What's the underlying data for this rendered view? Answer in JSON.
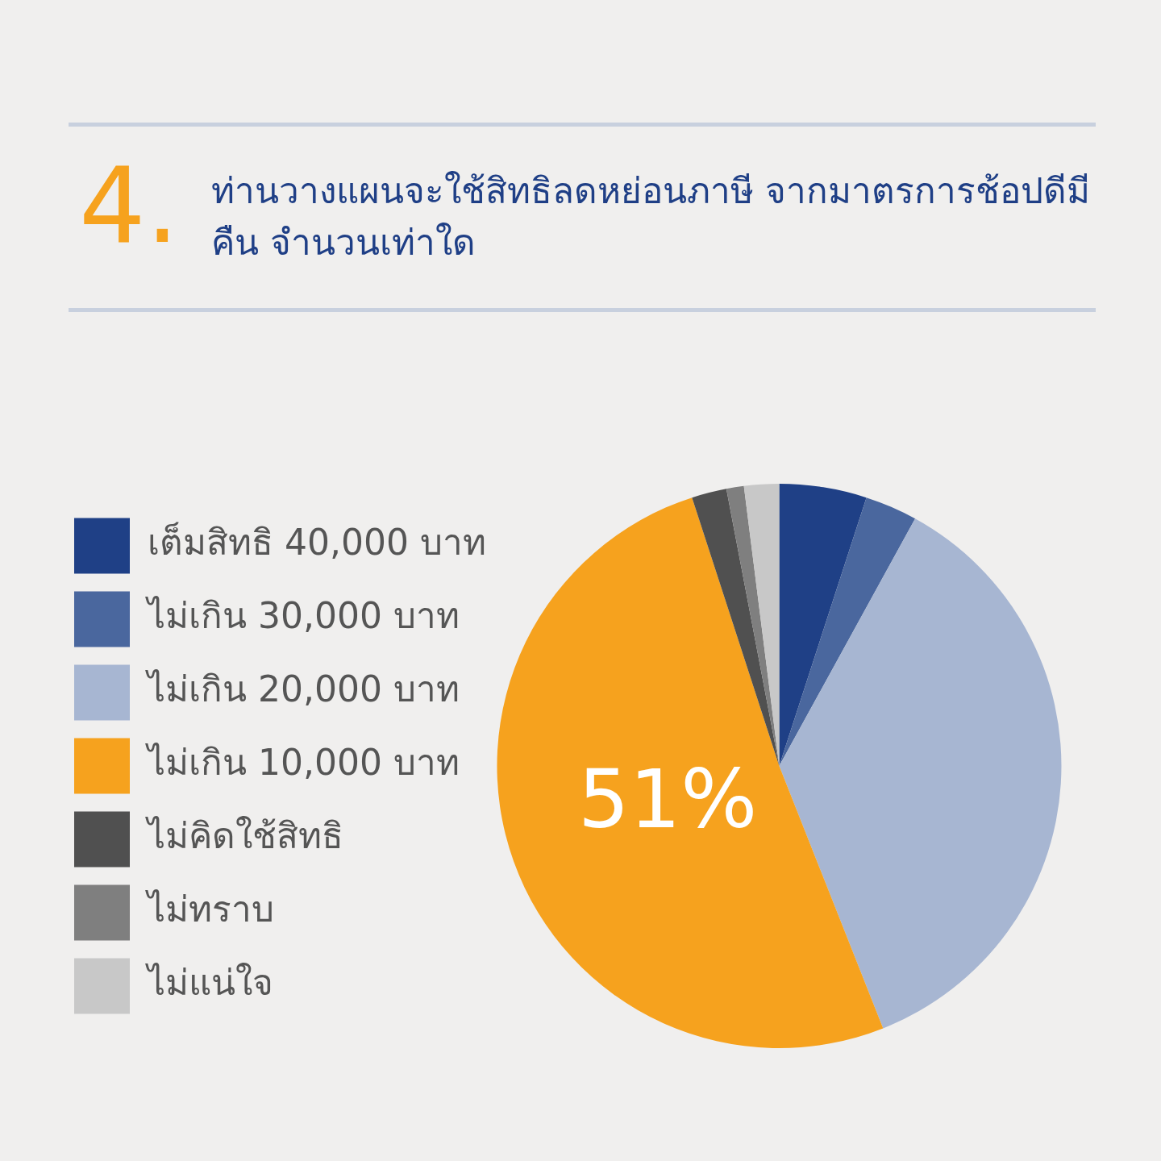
{
  "chart_data": {
    "type": "pie",
    "title": "ท่านวางแผนจะใช้สิทธิลดหย่อนภาษี จากมาตรการช้อปดีมีคืน จำนวนเท่าใด",
    "annotations": [
      "4."
    ],
    "categories": [
      "เต็มสิทธิ 40,000 บาท",
      "ไม่เกิน 30,000 บาท",
      "ไม่เกิน 20,000 บาท",
      "ไม่เกิน 10,000 บาท",
      "ไม่คิดใช้สิทธิ",
      "ไม่ทราบ",
      "ไม่แน่ใจ"
    ],
    "values": [
      5,
      3,
      36,
      51,
      2,
      1,
      2
    ],
    "colors": [
      "#1f4086",
      "#4a679e",
      "#a7b6d2",
      "#f6a21e",
      "#505050",
      "#7f7f7f",
      "#c8c8c8"
    ],
    "value_labels": [
      null,
      null,
      null,
      "51%",
      null,
      null,
      null
    ],
    "legend": "left"
  }
}
